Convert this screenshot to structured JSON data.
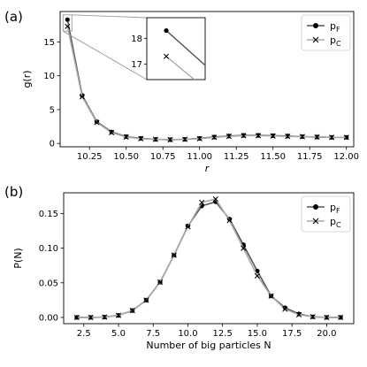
{
  "figure": {
    "panel_labels": [
      "(a)",
      "(b)"
    ]
  },
  "chart_data": [
    {
      "type": "line",
      "panel": "(a)",
      "xlabel": "r",
      "ylabel": "g(r)",
      "xlim": [
        10.05,
        12.05
      ],
      "ylim": [
        -0.5,
        19.5
      ],
      "xticks": [
        10.25,
        10.5,
        10.75,
        11.0,
        11.25,
        11.5,
        11.75,
        12.0
      ],
      "xtick_labels": [
        "10.25",
        "10.50",
        "10.75",
        "11.00",
        "11.25",
        "11.50",
        "11.75",
        "12.00"
      ],
      "yticks": [
        0,
        5,
        10,
        15
      ],
      "ytick_labels": [
        "0",
        "5",
        "10",
        "15"
      ],
      "legend": "top-right",
      "grid": false,
      "series": [
        {
          "name": "pF",
          "marker": "circle",
          "color": "#555555",
          "x": [
            10.1,
            10.2,
            10.3,
            10.4,
            10.5,
            10.6,
            10.7,
            10.8,
            10.9,
            11.0,
            11.1,
            11.2,
            11.3,
            11.4,
            11.5,
            11.6,
            11.7,
            11.8,
            11.9,
            12.0
          ],
          "y": [
            18.3,
            7.1,
            3.2,
            1.7,
            1.0,
            0.75,
            0.6,
            0.55,
            0.6,
            0.75,
            0.95,
            1.1,
            1.2,
            1.2,
            1.15,
            1.1,
            1.0,
            0.95,
            0.9,
            0.9
          ]
        },
        {
          "name": "pC",
          "marker": "x",
          "color": "#aaaaaa",
          "x": [
            10.1,
            10.2,
            10.3,
            10.4,
            10.5,
            10.6,
            10.7,
            10.8,
            10.9,
            11.0,
            11.1,
            11.2,
            11.3,
            11.4,
            11.5,
            11.6,
            11.7,
            11.8,
            11.9,
            12.0
          ],
          "y": [
            17.3,
            6.9,
            3.1,
            1.6,
            0.95,
            0.7,
            0.6,
            0.55,
            0.6,
            0.7,
            0.9,
            1.05,
            1.15,
            1.15,
            1.1,
            1.05,
            1.0,
            0.95,
            0.9,
            0.9
          ]
        }
      ],
      "inset": {
        "xlim": [
          10.094,
          10.112
        ],
        "ylim": [
          16.4,
          18.8
        ],
        "yticks": [
          17,
          18
        ],
        "ytick_labels": [
          "17",
          "18"
        ],
        "zoom_region_x": [
          10.07,
          10.13
        ],
        "zoom_region_y": [
          16.6,
          19.0
        ],
        "points": [
          {
            "series": "pF",
            "marker": "circle",
            "x": 10.1,
            "y": 18.3
          },
          {
            "series": "pC",
            "marker": "x",
            "x": 10.1,
            "y": 17.3
          }
        ]
      }
    },
    {
      "type": "line",
      "panel": "(b)",
      "xlabel": "Number of big particles N",
      "ylabel": "P(N)",
      "xlim": [
        1.05,
        21.95
      ],
      "ylim": [
        -0.009,
        0.18
      ],
      "xticks": [
        2.5,
        5.0,
        7.5,
        10.0,
        12.5,
        15.0,
        17.5,
        20.0
      ],
      "xtick_labels": [
        "2.5",
        "5.0",
        "7.5",
        "10.0",
        "12.5",
        "15.0",
        "17.5",
        "20.0"
      ],
      "yticks": [
        0.0,
        0.05,
        0.1,
        0.15
      ],
      "ytick_labels": [
        "0.00",
        "0.05",
        "0.10",
        "0.15"
      ],
      "legend": "top-right",
      "grid": false,
      "series": [
        {
          "name": "pF",
          "marker": "circle",
          "color": "#555555",
          "x": [
            2,
            3,
            4,
            5,
            6,
            7,
            8,
            9,
            10,
            11,
            12,
            13,
            14,
            15,
            16,
            17,
            18,
            19,
            20,
            21
          ],
          "y": [
            0.0,
            0.0,
            0.0005,
            0.003,
            0.01,
            0.025,
            0.051,
            0.09,
            0.132,
            0.161,
            0.167,
            0.142,
            0.105,
            0.067,
            0.031,
            0.014,
            0.005,
            0.001,
            0.0,
            0.0
          ]
        },
        {
          "name": "pC",
          "marker": "x",
          "color": "#aaaaaa",
          "x": [
            2,
            3,
            4,
            5,
            6,
            7,
            8,
            9,
            10,
            11,
            12,
            13,
            14,
            15,
            16,
            17,
            18,
            19,
            20,
            21
          ],
          "y": [
            0.0,
            0.0,
            0.0005,
            0.003,
            0.01,
            0.025,
            0.051,
            0.09,
            0.131,
            0.166,
            0.171,
            0.14,
            0.1,
            0.06,
            0.031,
            0.012,
            0.004,
            0.001,
            0.0,
            0.0
          ]
        }
      ]
    }
  ]
}
